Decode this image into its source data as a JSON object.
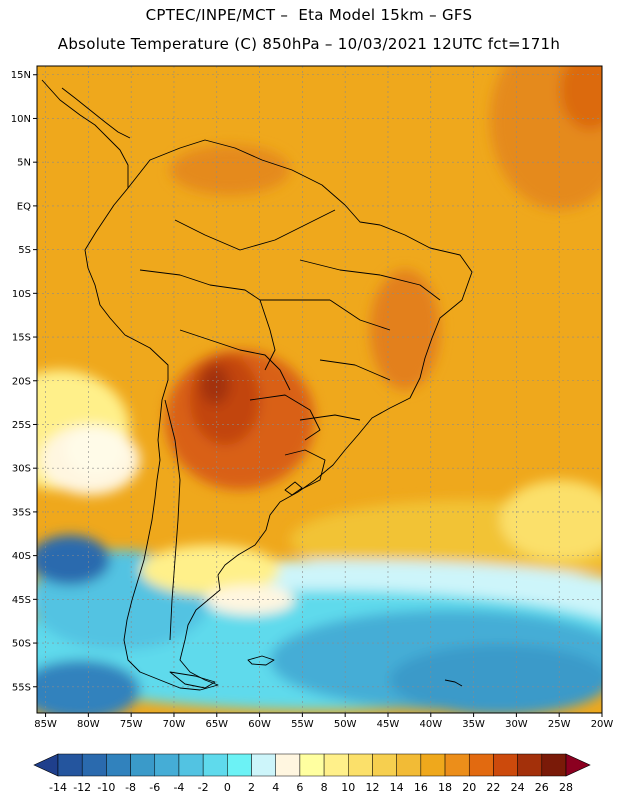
{
  "header": {
    "line1": "CPTEC/INPE/MCT –  Eta Model 15km – GFS",
    "line2": "Absolute Temperature (C) 850hPa – 10/03/2021 12UTC fct=171h"
  },
  "map": {
    "region": "South America",
    "lat_range": [
      -58,
      16
    ],
    "lon_range": [
      -86,
      -20
    ],
    "lat_ticks": [
      "15N",
      "10N",
      "5N",
      "EQ",
      "5S",
      "10S",
      "15S",
      "20S",
      "25S",
      "30S",
      "35S",
      "40S",
      "45S",
      "50S",
      "55S"
    ],
    "lon_ticks": [
      "85W",
      "80W",
      "75W",
      "70W",
      "65W",
      "60W",
      "55W",
      "50W",
      "45W",
      "40W",
      "35W",
      "30W",
      "25W",
      "20W"
    ]
  },
  "colorbar": {
    "labels": [
      "-14",
      "-12",
      "-10",
      "-8",
      "-6",
      "-4",
      "-2",
      "0",
      "2",
      "4",
      "6",
      "8",
      "10",
      "12",
      "14",
      "16",
      "18",
      "20",
      "22",
      "24",
      "26",
      "28"
    ],
    "colors": [
      "#1f3f8c",
      "#24559e",
      "#2a6aae",
      "#3182bd",
      "#3a9ac9",
      "#45add6",
      "#52c3e2",
      "#5fdaec",
      "#6cf2f5",
      "#cdf5fa",
      "#fff6e0",
      "#ffffa0",
      "#fff08a",
      "#fbe06a",
      "#f6cf4f",
      "#f2bb36",
      "#efa81c",
      "#ec8e1a",
      "#e26a10",
      "#cc4a0c",
      "#a3300a",
      "#7a1a08",
      "#8b0020"
    ]
  }
}
